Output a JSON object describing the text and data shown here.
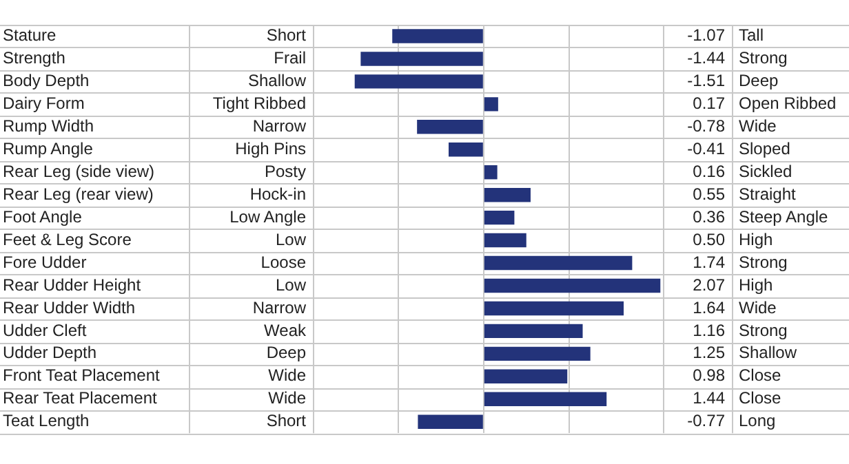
{
  "chart_data": {
    "type": "bar",
    "orientation": "horizontal",
    "categories": [
      "Stature",
      "Strength",
      "Body Depth",
      "Dairy Form",
      "Rump Width",
      "Rump Angle",
      "Rear Leg (side view)",
      "Rear Leg (rear view)",
      "Foot Angle",
      "Feet & Leg Score",
      "Fore Udder",
      "Rear Udder Height",
      "Rear Udder Width",
      "Udder Cleft",
      "Udder Depth",
      "Front Teat Placement",
      "Rear Teat Placement",
      "Teat Length"
    ],
    "values": [
      -1.07,
      -1.44,
      -1.51,
      0.17,
      -0.78,
      -0.41,
      0.16,
      0.55,
      0.36,
      0.5,
      1.74,
      2.07,
      1.64,
      1.16,
      1.25,
      0.98,
      1.44,
      -0.77
    ],
    "value_labels": [
      "-1.07",
      "-1.44",
      "-1.51",
      "0.17",
      "-0.78",
      "-0.41",
      "0.16",
      "0.55",
      "0.36",
      "0.50",
      "1.74",
      "2.07",
      "1.64",
      "1.16",
      "1.25",
      "0.98",
      "1.44",
      "-0.77"
    ],
    "color": "#23337a",
    "xlim": [
      -2,
      2.1
    ],
    "xticks": [
      {
        "value": -1,
        "label": null
      },
      {
        "value": 0,
        "label": null
      },
      {
        "value": 1,
        "label": null
      }
    ],
    "grid": "x",
    "legend": false,
    "annotations": [
      "Short",
      "Frail",
      "Shallow",
      "Tight Ribbed",
      "Narrow",
      "High Pins",
      "Posty",
      "Hock-in",
      "Low Angle",
      "Low",
      "Loose",
      "Low",
      "Narrow",
      "Weak",
      "Deep",
      "Wide",
      "Wide",
      "Short",
      "Tall",
      "Strong",
      "Deep",
      "Open Ribbed",
      "Wide",
      "Sloped",
      "Sickled",
      "Straight",
      "Steep Angle",
      "High",
      "Strong",
      "High",
      "Wide",
      "Strong",
      "Shallow",
      "Close",
      "Close",
      "Long"
    ]
  }
}
